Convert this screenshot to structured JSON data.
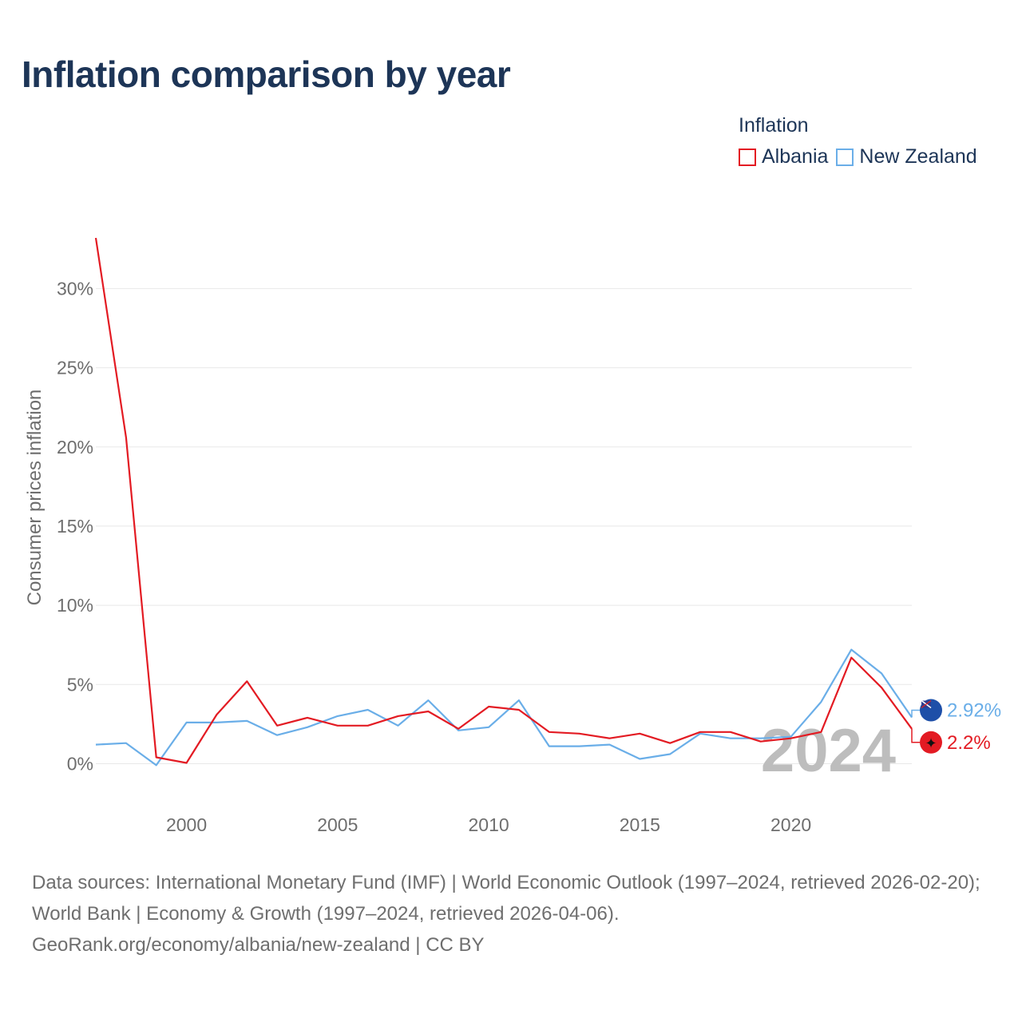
{
  "title": "Inflation comparison by year",
  "legend": {
    "title": "Inflation",
    "items": [
      {
        "label": "Albania",
        "color": "#e31b23"
      },
      {
        "label": "New Zealand",
        "color": "#6aaee8"
      }
    ]
  },
  "source": {
    "line1": "Data sources: International Monetary Fund (IMF) | World Economic Outlook (1997–2024, retrieved 2026-02-20); World Bank | Economy & Growth (1997–2024, retrieved 2026-04-06).",
    "line2": "GeoRank.org/economy/albania/new-zealand | CC BY"
  },
  "chart_data": {
    "type": "line",
    "title": "Inflation comparison by year",
    "xlabel": "",
    "ylabel": "Consumer prices inflation",
    "xlim": [
      1997,
      2024
    ],
    "ylim": [
      -2.7,
      33.5
    ],
    "yticks": [
      0,
      5,
      10,
      15,
      20,
      25,
      30
    ],
    "ytick_labels": [
      "0%",
      "5%",
      "10%",
      "15%",
      "20%",
      "25%",
      "30%"
    ],
    "xticks": [
      2000,
      2005,
      2010,
      2015,
      2020
    ],
    "xtick_labels": [
      "2000",
      "2005",
      "2010",
      "2015",
      "2020"
    ],
    "x": [
      1997,
      1998,
      1999,
      2000,
      2001,
      2002,
      2003,
      2004,
      2005,
      2006,
      2007,
      2008,
      2009,
      2010,
      2011,
      2012,
      2013,
      2014,
      2015,
      2016,
      2017,
      2018,
      2019,
      2020,
      2021,
      2022,
      2023,
      2024
    ],
    "series": [
      {
        "name": "Albania",
        "color": "#e31b23",
        "values": [
          33.2,
          20.6,
          0.4,
          0.05,
          3.1,
          5.2,
          2.4,
          2.9,
          2.4,
          2.4,
          3.0,
          3.3,
          2.2,
          3.6,
          3.4,
          2.0,
          1.9,
          1.6,
          1.9,
          1.3,
          2.0,
          2.0,
          1.4,
          1.6,
          2.0,
          6.7,
          4.8,
          2.2
        ],
        "end_label": "2.2%"
      },
      {
        "name": "New Zealand",
        "color": "#6aaee8",
        "values": [
          1.2,
          1.3,
          -0.1,
          2.6,
          2.6,
          2.7,
          1.8,
          2.3,
          3.0,
          3.4,
          2.4,
          4.0,
          2.1,
          2.3,
          4.0,
          1.1,
          1.1,
          1.2,
          0.3,
          0.6,
          1.9,
          1.6,
          1.6,
          1.7,
          3.9,
          7.2,
          5.7,
          2.92
        ],
        "end_label": "2.92%"
      }
    ],
    "grid": true,
    "annotation": "2024"
  }
}
